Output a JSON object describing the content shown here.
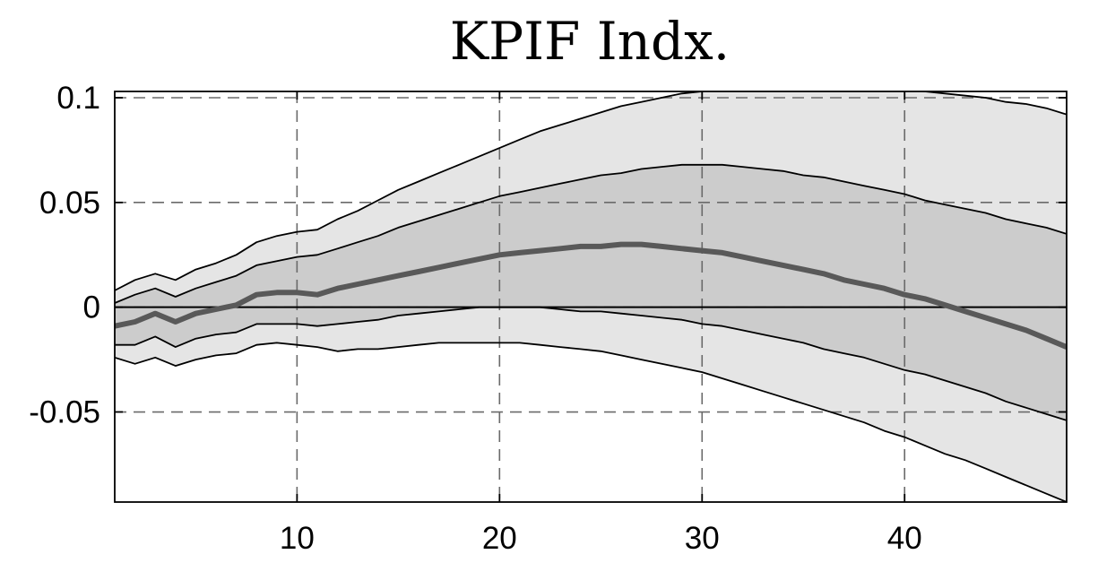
{
  "chart_data": {
    "type": "area",
    "title": "KPIF Indx.",
    "xlabel": "",
    "ylabel": "",
    "xlim": [
      1,
      48
    ],
    "ylim": [
      -0.093,
      0.103
    ],
    "grid": true,
    "x_ticks": [
      10,
      20,
      30,
      40
    ],
    "x_tick_labels": [
      "10",
      "20",
      "30",
      "40"
    ],
    "y_ticks": [
      0.1,
      0.05,
      0,
      -0.05
    ],
    "y_tick_labels": [
      "0.1",
      "0.05",
      "0",
      "-0.05"
    ],
    "zero_line": 0,
    "x": [
      1,
      2,
      3,
      4,
      5,
      6,
      7,
      8,
      9,
      10,
      11,
      12,
      13,
      14,
      15,
      16,
      17,
      18,
      19,
      20,
      21,
      22,
      23,
      24,
      25,
      26,
      27,
      28,
      29,
      30,
      31,
      32,
      33,
      34,
      35,
      36,
      37,
      38,
      39,
      40,
      41,
      42,
      43,
      44,
      45,
      46,
      47,
      48
    ],
    "outer_band": {
      "upper": [
        0.008,
        0.013,
        0.016,
        0.013,
        0.018,
        0.021,
        0.025,
        0.031,
        0.034,
        0.036,
        0.037,
        0.042,
        0.046,
        0.051,
        0.056,
        0.06,
        0.064,
        0.068,
        0.072,
        0.076,
        0.08,
        0.084,
        0.087,
        0.09,
        0.093,
        0.096,
        0.098,
        0.1,
        0.102,
        0.103,
        0.104,
        0.104,
        0.105,
        0.105,
        0.105,
        0.105,
        0.106,
        0.106,
        0.105,
        0.104,
        0.103,
        0.102,
        0.101,
        0.1,
        0.098,
        0.097,
        0.095,
        0.092
      ],
      "lower": [
        -0.024,
        -0.027,
        -0.024,
        -0.028,
        -0.025,
        -0.023,
        -0.022,
        -0.018,
        -0.017,
        -0.018,
        -0.019,
        -0.021,
        -0.02,
        -0.02,
        -0.019,
        -0.018,
        -0.017,
        -0.017,
        -0.017,
        -0.017,
        -0.017,
        -0.018,
        -0.019,
        -0.02,
        -0.021,
        -0.023,
        -0.025,
        -0.027,
        -0.029,
        -0.031,
        -0.034,
        -0.037,
        -0.04,
        -0.043,
        -0.046,
        -0.049,
        -0.052,
        -0.055,
        -0.059,
        -0.062,
        -0.066,
        -0.07,
        -0.073,
        -0.077,
        -0.081,
        -0.085,
        -0.089,
        -0.093
      ]
    },
    "inner_band": {
      "upper": [
        0.002,
        0.006,
        0.009,
        0.005,
        0.009,
        0.012,
        0.015,
        0.02,
        0.022,
        0.024,
        0.025,
        0.028,
        0.031,
        0.034,
        0.038,
        0.041,
        0.044,
        0.047,
        0.05,
        0.053,
        0.055,
        0.057,
        0.059,
        0.061,
        0.063,
        0.064,
        0.066,
        0.067,
        0.068,
        0.068,
        0.068,
        0.067,
        0.066,
        0.065,
        0.063,
        0.062,
        0.06,
        0.058,
        0.056,
        0.054,
        0.051,
        0.049,
        0.047,
        0.045,
        0.042,
        0.04,
        0.038,
        0.035
      ],
      "lower": [
        -0.018,
        -0.018,
        -0.014,
        -0.019,
        -0.015,
        -0.013,
        -0.012,
        -0.008,
        -0.008,
        -0.008,
        -0.009,
        -0.008,
        -0.007,
        -0.006,
        -0.004,
        -0.003,
        -0.002,
        -0.001,
        0.0,
        0.0,
        0.0,
        0.0,
        -0.001,
        -0.002,
        -0.002,
        -0.003,
        -0.004,
        -0.005,
        -0.006,
        -0.008,
        -0.009,
        -0.011,
        -0.013,
        -0.015,
        -0.017,
        -0.02,
        -0.022,
        -0.024,
        -0.027,
        -0.03,
        -0.032,
        -0.035,
        -0.038,
        -0.041,
        -0.045,
        -0.048,
        -0.051,
        -0.054
      ]
    },
    "median": [
      -0.009,
      -0.007,
      -0.003,
      -0.007,
      -0.003,
      -0.001,
      0.001,
      0.006,
      0.007,
      0.007,
      0.006,
      0.009,
      0.011,
      0.013,
      0.015,
      0.017,
      0.019,
      0.021,
      0.023,
      0.025,
      0.026,
      0.027,
      0.028,
      0.029,
      0.029,
      0.03,
      0.03,
      0.029,
      0.028,
      0.027,
      0.026,
      0.024,
      0.022,
      0.02,
      0.018,
      0.016,
      0.013,
      0.011,
      0.009,
      0.006,
      0.004,
      0.001,
      -0.002,
      -0.005,
      -0.008,
      -0.011,
      -0.015,
      -0.019
    ],
    "colors": {
      "outer_band": "#e5e5e5",
      "inner_band": "#cccccc",
      "band_edge": "#000000",
      "median": "#595959",
      "zero_line": "#000000",
      "grid": "#6a6a6a",
      "axes": "#000000",
      "background": "#ffffff"
    }
  }
}
